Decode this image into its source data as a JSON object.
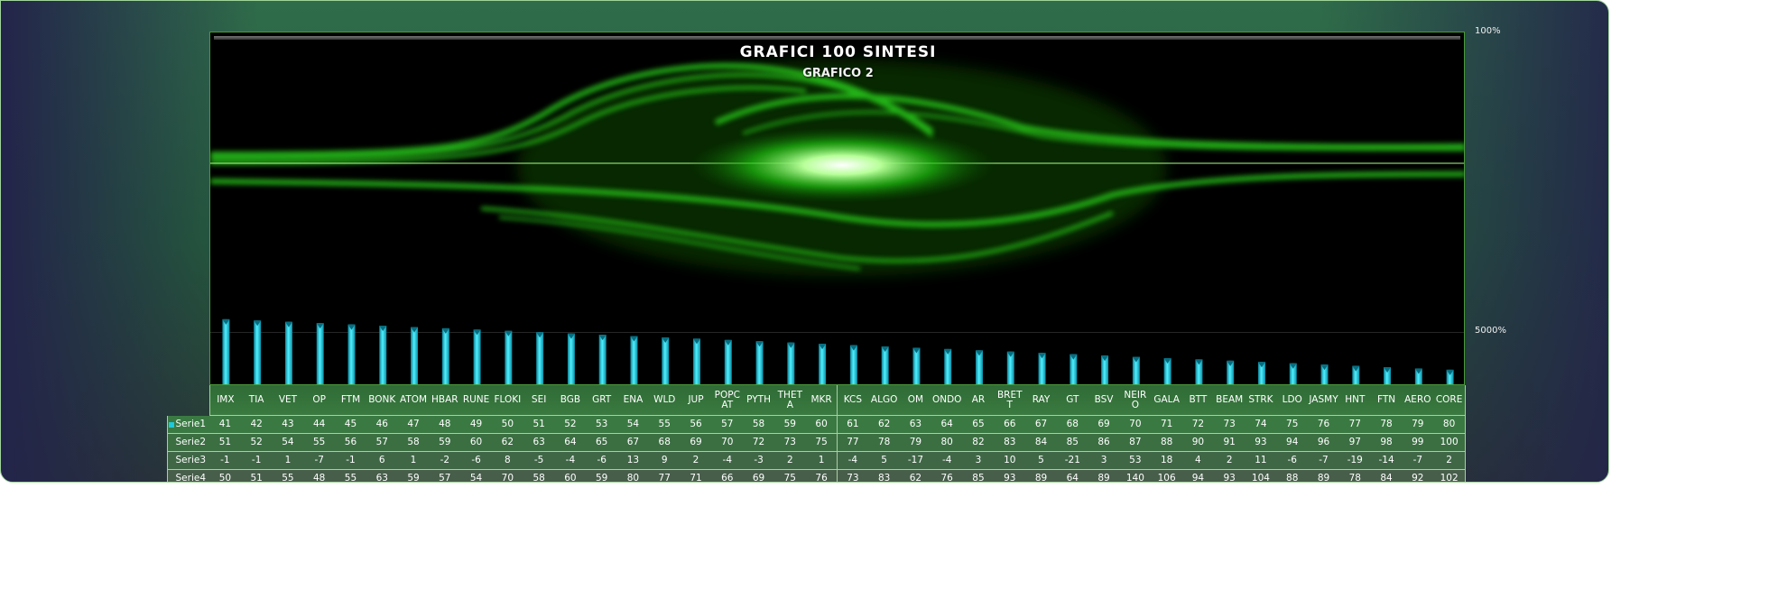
{
  "chart_data": {
    "type": "bar",
    "title": "GRAFICI 100 SINTESI",
    "subtitle": "GRAFICO 2",
    "categories": [
      "IMX",
      "TIA",
      "VET",
      "OP",
      "FTM",
      "BONK",
      "ATOM",
      "HBAR",
      "RUNE",
      "FLOKI",
      "SEI",
      "BGB",
      "GRT",
      "ENA",
      "WLD",
      "JUP",
      "POPCAT",
      "PYTH",
      "THETA",
      "MKR",
      "KCS",
      "ALGO",
      "OM",
      "ONDO",
      "AR",
      "BRETT",
      "RAY",
      "GT",
      "BSV",
      "NEIRO",
      "GALA",
      "BTT",
      "BEAM",
      "STRK",
      "LDO",
      "JASMY",
      "HNT",
      "FTN",
      "AERO",
      "CORE"
    ],
    "series": [
      {
        "name": "Serie1",
        "values": [
          41,
          42,
          43,
          44,
          45,
          46,
          47,
          48,
          49,
          50,
          51,
          52,
          53,
          54,
          55,
          56,
          57,
          58,
          59,
          60,
          61,
          62,
          63,
          64,
          65,
          66,
          67,
          68,
          69,
          70,
          71,
          72,
          73,
          74,
          75,
          76,
          77,
          78,
          79,
          80
        ],
        "drawn_as_bars": true,
        "color": "#1ec9de"
      },
      {
        "name": "Serie2",
        "values": [
          51,
          52,
          54,
          55,
          56,
          57,
          58,
          59,
          60,
          62,
          63,
          64,
          65,
          67,
          68,
          69,
          70,
          72,
          73,
          75,
          77,
          78,
          79,
          80,
          82,
          83,
          84,
          85,
          86,
          87,
          88,
          90,
          91,
          93,
          94,
          96,
          97,
          98,
          99,
          100
        ]
      },
      {
        "name": "Serie3",
        "values": [
          -1,
          -1,
          1,
          -7,
          -1,
          6,
          1,
          -2,
          -6,
          8,
          -5,
          -4,
          -6,
          13,
          9,
          2,
          -4,
          -3,
          2,
          1,
          -4,
          5,
          -17,
          -4,
          3,
          10,
          5,
          -21,
          3,
          53,
          18,
          4,
          2,
          11,
          -6,
          -7,
          -19,
          -14,
          -7,
          2
        ]
      },
      {
        "name": "Serie4",
        "values": [
          50,
          51,
          55,
          48,
          55,
          63,
          59,
          57,
          54,
          70,
          58,
          60,
          59,
          80,
          77,
          71,
          66,
          69,
          75,
          76,
          73,
          83,
          62,
          76,
          85,
          93,
          89,
          64,
          89,
          140,
          106,
          94,
          93,
          104,
          88,
          89,
          78,
          84,
          92,
          102
        ]
      }
    ],
    "secondary_axis_ticks": [
      "100%",
      "5000%"
    ],
    "axis_reversed": true,
    "data_table": true,
    "grid": true
  }
}
